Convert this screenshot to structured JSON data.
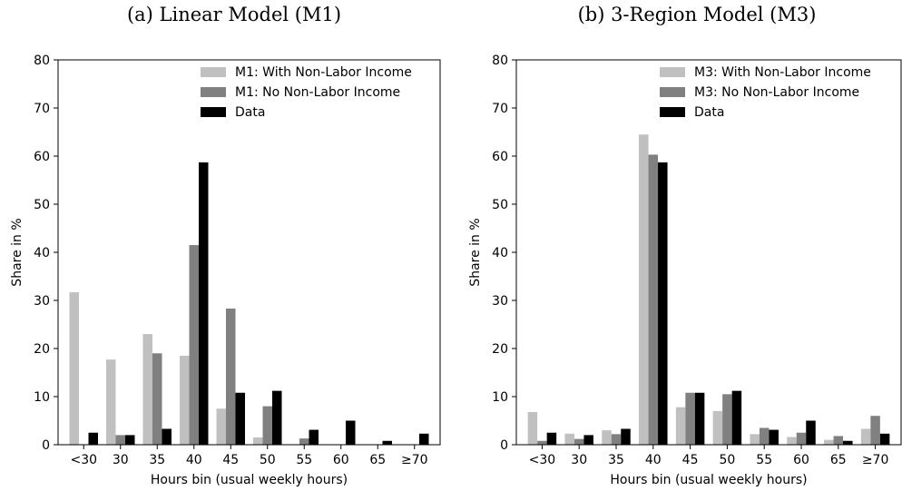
{
  "chart_data": [
    {
      "type": "bar",
      "title": "(a) Linear Model (M1)",
      "xlabel": "Hours bin (usual weekly hours)",
      "ylabel": "Share in %",
      "ylim": [
        0,
        80
      ],
      "yticks": [
        0,
        10,
        20,
        30,
        40,
        50,
        60,
        70,
        80
      ],
      "categories": [
        "<30",
        "30",
        "35",
        "40",
        "45",
        "50",
        "55",
        "60",
        "65",
        "≥70"
      ],
      "legend_position": "top-right",
      "series": [
        {
          "name": "M1: With Non-Labor Income",
          "color": "#c0c0c0",
          "values": [
            31.7,
            17.7,
            23.0,
            18.5,
            7.5,
            1.5,
            0,
            0,
            0,
            0
          ]
        },
        {
          "name": "M1: No Non-Labor Income",
          "color": "#808080",
          "values": [
            0,
            2.0,
            19.0,
            41.5,
            28.3,
            8.0,
            1.3,
            0,
            0,
            0
          ]
        },
        {
          "name": "Data",
          "color": "#000000",
          "values": [
            2.5,
            2.0,
            3.3,
            58.7,
            10.8,
            11.2,
            3.1,
            5.0,
            0.8,
            2.3
          ]
        }
      ]
    },
    {
      "type": "bar",
      "title": "(b) 3-Region Model (M3)",
      "xlabel": "Hours bin (usual weekly hours)",
      "ylabel": "Share in %",
      "ylim": [
        0,
        80
      ],
      "yticks": [
        0,
        10,
        20,
        30,
        40,
        50,
        60,
        70,
        80
      ],
      "categories": [
        "<30",
        "30",
        "35",
        "40",
        "45",
        "50",
        "55",
        "60",
        "65",
        "≥70"
      ],
      "legend_position": "top-right",
      "series": [
        {
          "name": "M3: With Non-Labor Income",
          "color": "#c0c0c0",
          "values": [
            6.8,
            2.3,
            3.0,
            64.5,
            7.8,
            7.0,
            2.2,
            1.6,
            1.0,
            3.3
          ]
        },
        {
          "name": "M3: No Non-Labor Income",
          "color": "#808080",
          "values": [
            0.8,
            1.2,
            2.2,
            60.3,
            10.8,
            10.5,
            3.5,
            2.5,
            1.8,
            6.0
          ]
        },
        {
          "name": "Data",
          "color": "#000000",
          "values": [
            2.5,
            2.0,
            3.3,
            58.7,
            10.8,
            11.2,
            3.1,
            5.0,
            0.8,
            2.3
          ]
        }
      ]
    }
  ]
}
